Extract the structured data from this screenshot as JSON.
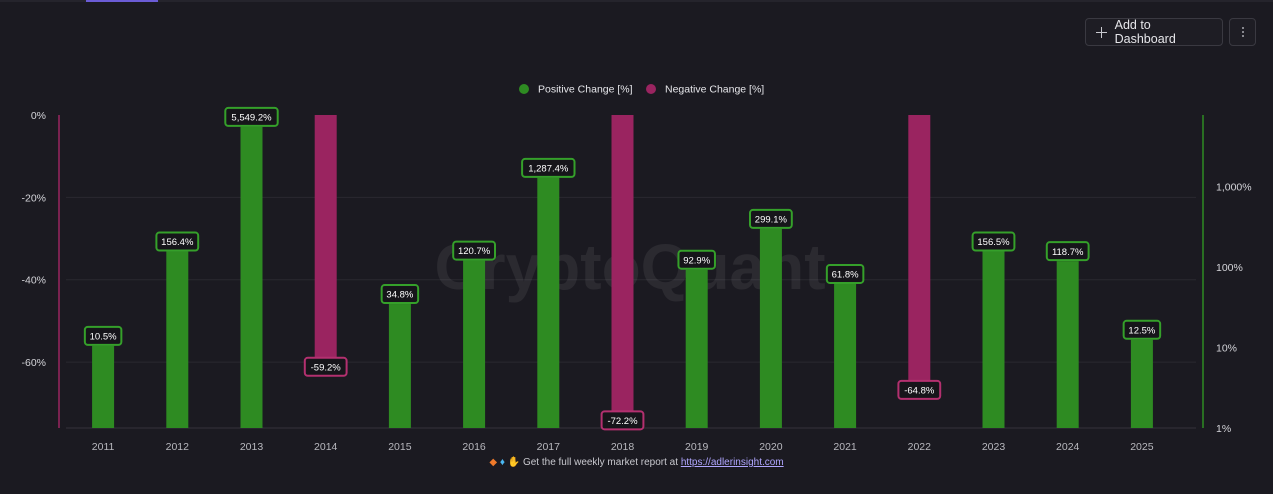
{
  "toolbar": {
    "add_label": "Add to Dashboard",
    "add_icon": "plus-icon",
    "more_icon": "kebab-icon"
  },
  "chart_data": {
    "type": "bar",
    "title": "",
    "categories": [
      "2011",
      "2012",
      "2013",
      "2014",
      "2015",
      "2016",
      "2017",
      "2018",
      "2019",
      "2020",
      "2021",
      "2022",
      "2023",
      "2024",
      "2025"
    ],
    "series": [
      {
        "name": "Positive Change [%]",
        "color": "#2e8b22",
        "axis": "right",
        "values": [
          10.5,
          156.4,
          5549.2,
          null,
          34.8,
          120.7,
          1287.4,
          null,
          92.9,
          299.1,
          61.8,
          null,
          156.5,
          118.7,
          12.5
        ],
        "labels": [
          "10.5%",
          "156.4%",
          "5,549.2%",
          "",
          "34.8%",
          "120.7%",
          "1,287.4%",
          "",
          "92.9%",
          "299.1%",
          "61.8%",
          "",
          "156.5%",
          "118.7%",
          "12.5%"
        ]
      },
      {
        "name": "Negative Change [%]",
        "color": "#9a2460",
        "axis": "left",
        "values": [
          null,
          null,
          null,
          -59.2,
          null,
          null,
          null,
          -72.2,
          null,
          null,
          null,
          -64.8,
          null,
          null,
          null
        ],
        "labels": [
          "",
          "",
          "",
          "-59.2%",
          "",
          "",
          "",
          "-72.2%",
          "",
          "",
          "",
          "-64.8%",
          "",
          "",
          ""
        ]
      }
    ],
    "left_axis": {
      "scale": "linear",
      "ylim": [
        -76,
        0
      ],
      "ticks": [
        0,
        -20,
        -40,
        -60
      ],
      "tick_labels": [
        "0%",
        "-20%",
        "-40%",
        "-60%"
      ]
    },
    "right_axis": {
      "scale": "log",
      "ylim": [
        1,
        7800
      ],
      "ticks": [
        1,
        10,
        100,
        1000
      ],
      "tick_labels": [
        "1%",
        "10%",
        "100%",
        "1,000%"
      ]
    },
    "legend_position": "top-center",
    "grid": true,
    "watermark": "CryptoQuant"
  },
  "footer": {
    "text": "Get the full weekly market report at",
    "link": "https://adlerinsight.com"
  }
}
